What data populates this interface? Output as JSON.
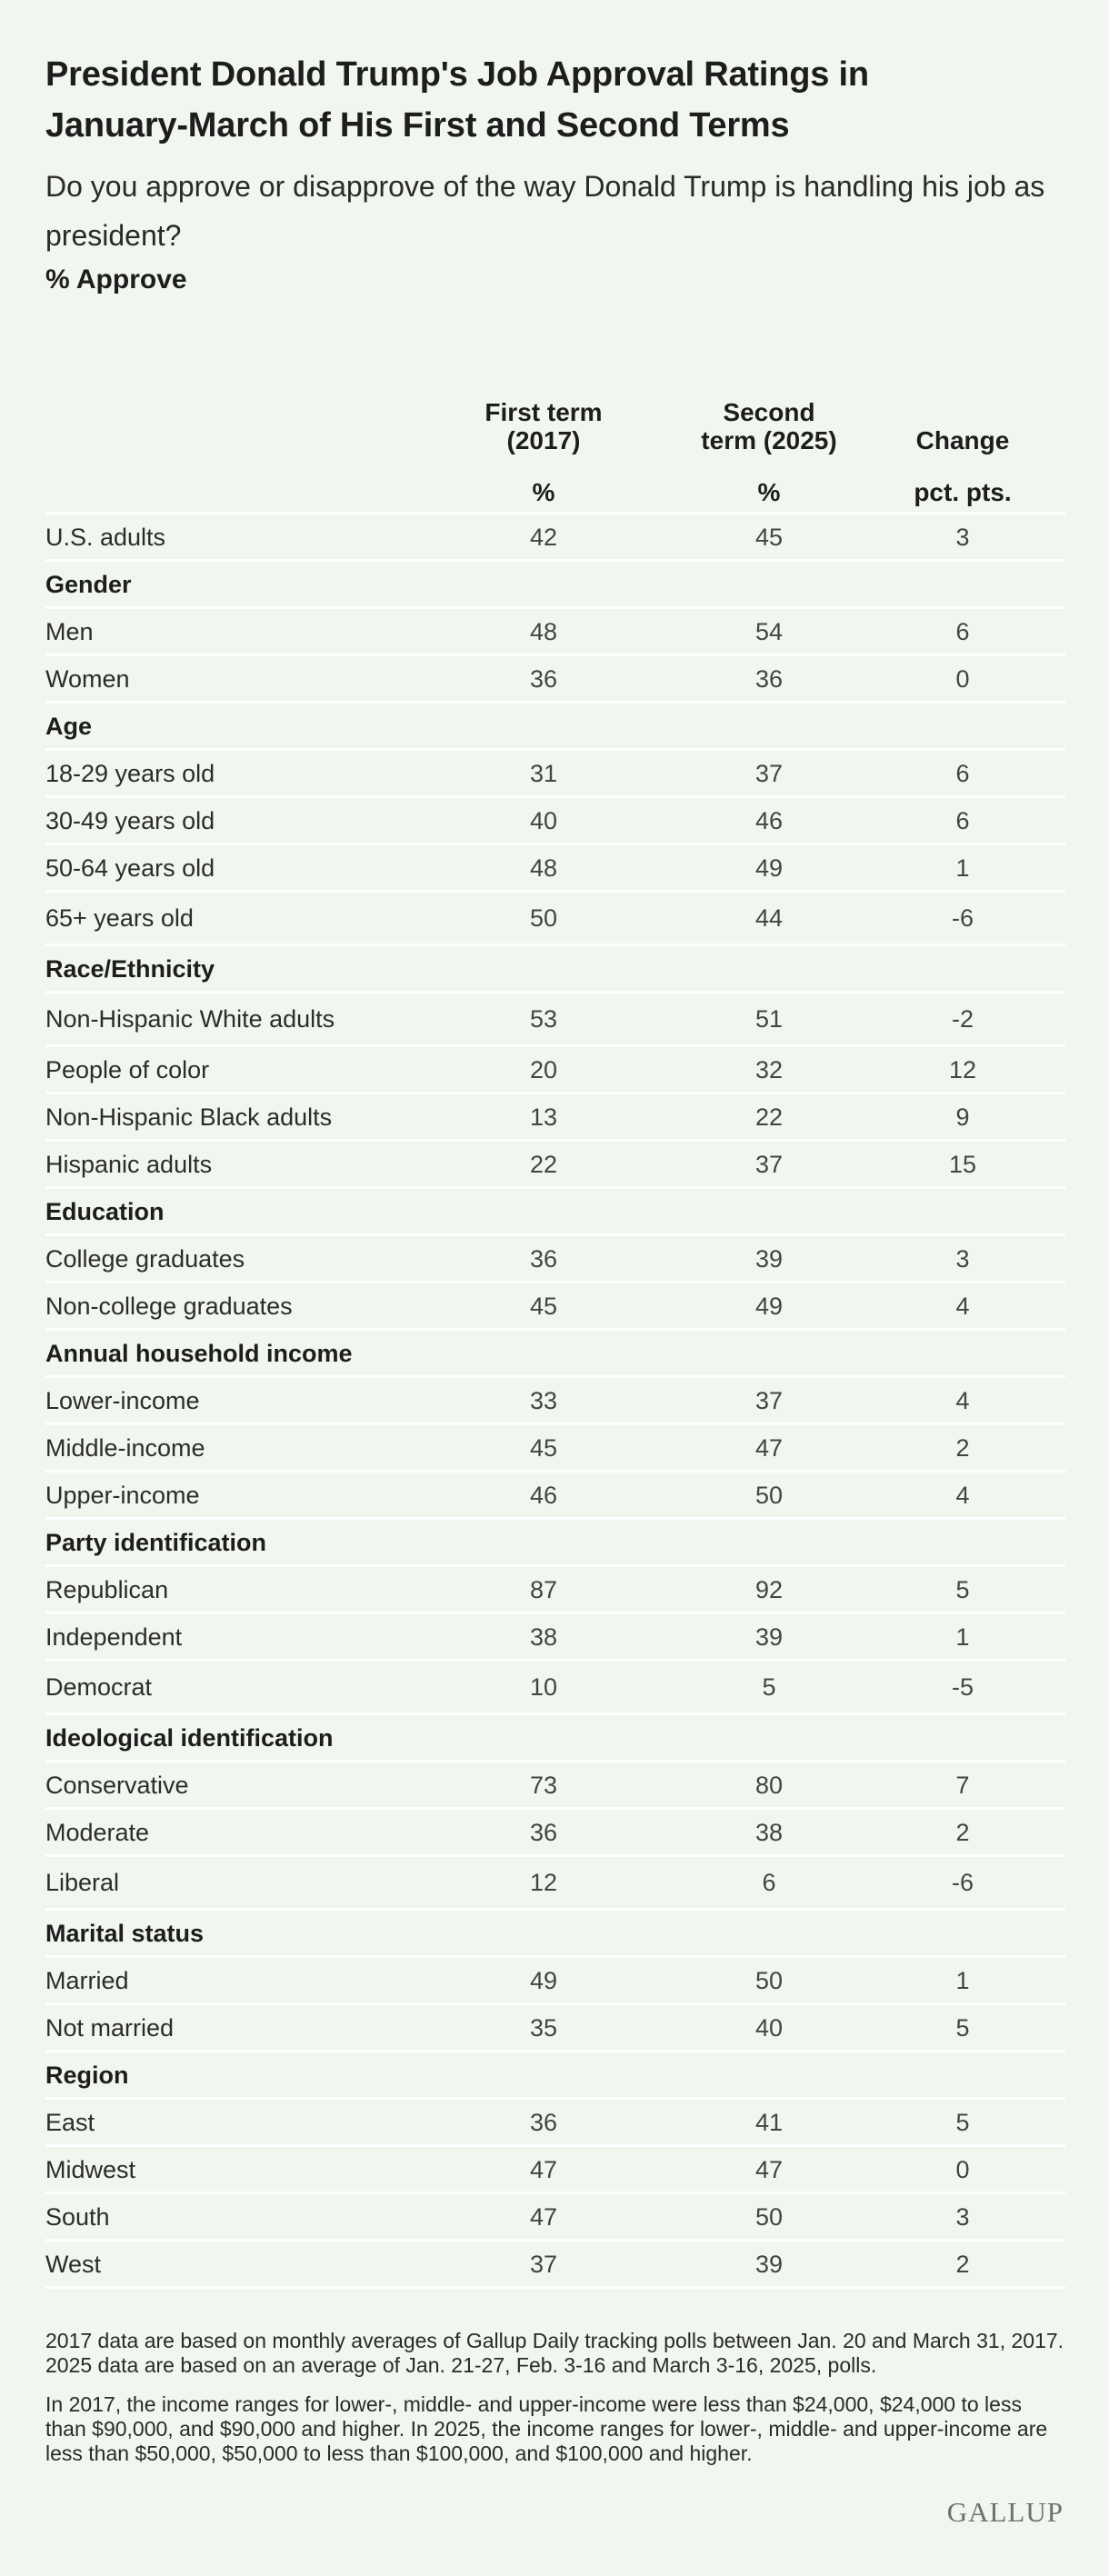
{
  "header": {
    "title_line1": "President Donald Trump's Job Approval Ratings in",
    "title_line2": "January-March of His First and Second Terms",
    "question_line1": "Do you approve or disapprove of the way Donald Trump is handling his job as",
    "question_line2": "president?",
    "measure": "% Approve"
  },
  "columns": {
    "first_line1": "First term",
    "first_line2": "(2017)",
    "second_line1": "Second",
    "second_line2": "term (2025)",
    "change": "Change",
    "first_unit": "%",
    "second_unit": "%",
    "change_unit": "pct. pts."
  },
  "rows": [
    {
      "label": "U.S. adults",
      "first": "42",
      "second": "45",
      "change": "3"
    },
    {
      "section": "Gender"
    },
    {
      "label": "Men",
      "first": "48",
      "second": "54",
      "change": "6"
    },
    {
      "label": "Women",
      "first": "36",
      "second": "36",
      "change": "0"
    },
    {
      "section": "Age"
    },
    {
      "label": "18-29 years old",
      "first": "31",
      "second": "37",
      "change": "6"
    },
    {
      "label": "30-49 years old",
      "first": "40",
      "second": "46",
      "change": "6"
    },
    {
      "label": "50-64 years old",
      "first": "48",
      "second": "49",
      "change": "1"
    },
    {
      "label": "65+ years old",
      "first": "50",
      "second": "44",
      "change": "-6"
    },
    {
      "section": "Race/Ethnicity"
    },
    {
      "label": "Non-Hispanic White adults",
      "first": "53",
      "second": "51",
      "change": "-2"
    },
    {
      "label": "People of color",
      "first": "20",
      "second": "32",
      "change": "12"
    },
    {
      "label": "Non-Hispanic Black adults",
      "first": "13",
      "second": "22",
      "change": "9"
    },
    {
      "label": "Hispanic adults",
      "first": "22",
      "second": "37",
      "change": "15"
    },
    {
      "section": "Education"
    },
    {
      "label": "College graduates",
      "first": "36",
      "second": "39",
      "change": "3"
    },
    {
      "label": "Non-college graduates",
      "first": "45",
      "second": "49",
      "change": "4"
    },
    {
      "section": "Annual household income"
    },
    {
      "label": "Lower-income",
      "first": "33",
      "second": "37",
      "change": "4"
    },
    {
      "label": "Middle-income",
      "first": "45",
      "second": "47",
      "change": "2"
    },
    {
      "label": "Upper-income",
      "first": "46",
      "second": "50",
      "change": "4"
    },
    {
      "section": "Party identification"
    },
    {
      "label": "Republican",
      "first": "87",
      "second": "92",
      "change": "5"
    },
    {
      "label": "Independent",
      "first": "38",
      "second": "39",
      "change": "1"
    },
    {
      "label": "Democrat",
      "first": "10",
      "second": "5",
      "change": "-5"
    },
    {
      "section": "Ideological identification"
    },
    {
      "label": "Conservative",
      "first": "73",
      "second": "80",
      "change": "7"
    },
    {
      "label": "Moderate",
      "first": "36",
      "second": "38",
      "change": "2"
    },
    {
      "label": "Liberal",
      "first": "12",
      "second": "6",
      "change": "-6"
    },
    {
      "section": "Marital status"
    },
    {
      "label": "Married",
      "first": "49",
      "second": "50",
      "change": "1"
    },
    {
      "label": "Not married",
      "first": "35",
      "second": "40",
      "change": "5"
    },
    {
      "section": "Region"
    },
    {
      "label": "East",
      "first": "36",
      "second": "41",
      "change": "5"
    },
    {
      "label": "Midwest",
      "first": "47",
      "second": "47",
      "change": "0"
    },
    {
      "label": "South",
      "first": "47",
      "second": "50",
      "change": "3"
    },
    {
      "label": "West",
      "first": "37",
      "second": "39",
      "change": "2"
    }
  ],
  "notes": {
    "note1": "2017 data are based on monthly averages of Gallup Daily tracking polls between Jan. 20 and March 31, 2017. 2025 data are based on an average of Jan. 21-27, Feb. 3-16 and March 3-16, 2025, polls.",
    "note2": "In 2017, the income ranges for lower-, middle- and upper-income were less than $24,000, $24,000 to less than $90,000, and $90,000 and higher. In 2025, the income ranges for lower-, middle- and upper-income are less than $50,000, $50,000 to less than $100,000, and $100,000 and higher."
  },
  "logo": "GALLUP",
  "colors": {
    "background": "#f1f6ef",
    "rule": "#ffffff",
    "text": "#1d1d1d"
  }
}
